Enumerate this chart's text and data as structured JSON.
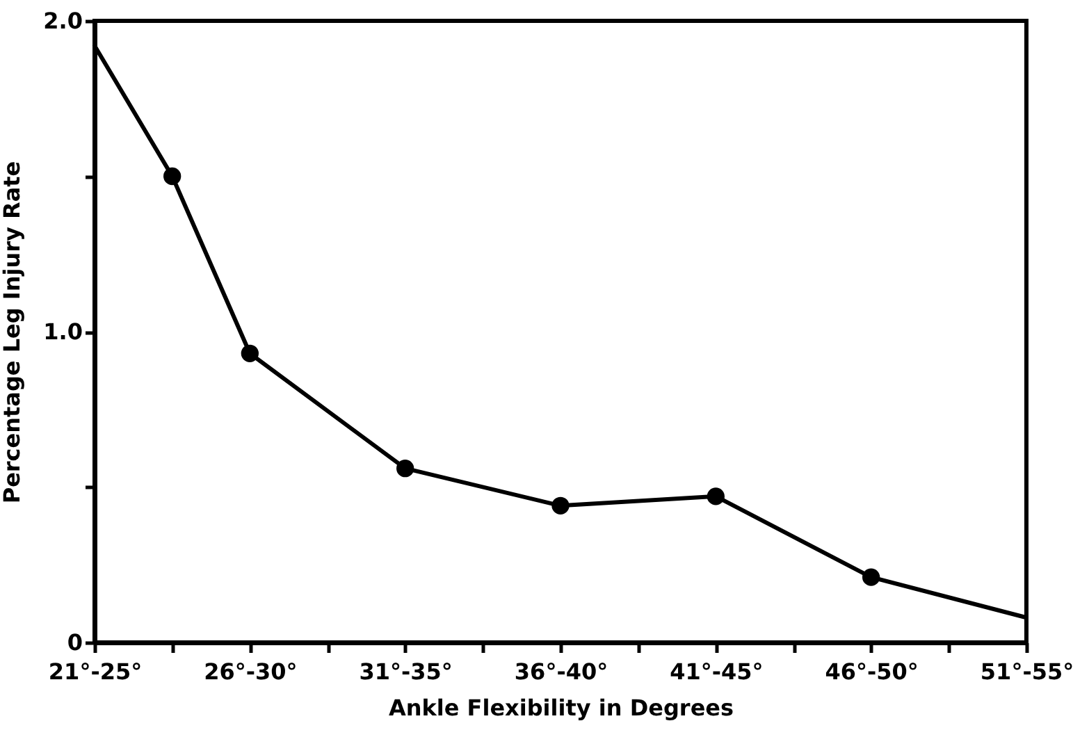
{
  "chart_data": {
    "type": "line",
    "xlabel": "Ankle Flexibility in Degrees",
    "ylabel": "Percentage Leg Injury Rate",
    "categories": [
      "21°-25°",
      null,
      "26°-30°",
      null,
      "31°-35°",
      null,
      "36°-40°",
      null,
      "41°-45°",
      null,
      "46°-50°",
      null,
      "51°-55°"
    ],
    "ylim": [
      0,
      2
    ],
    "yticks": [
      {
        "value": 0,
        "label": "0"
      },
      {
        "value": 0.5,
        "label": null
      },
      {
        "value": 1,
        "label": "1.0"
      },
      {
        "value": 1.5,
        "label": null
      },
      {
        "value": 2,
        "label": "2.0"
      }
    ],
    "grid": false,
    "series": [
      {
        "marker": "none",
        "line_style": "solid",
        "color": "#000000",
        "values": [
          1.92,
          1.5,
          0.93,
          null,
          0.56,
          null,
          0.44,
          null,
          0.47,
          null,
          0.21,
          null,
          0.08
        ]
      },
      {
        "type": "scatter",
        "marker": "circle",
        "color": "#000000",
        "values": [
          null,
          1.5,
          0.93,
          null,
          0.56,
          null,
          0.44,
          null,
          0.47,
          null,
          0.21,
          null,
          null
        ]
      }
    ]
  }
}
